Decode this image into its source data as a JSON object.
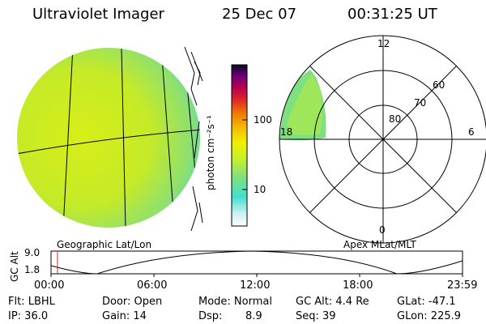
{
  "header": {
    "instrument": "Ultraviolet Imager",
    "date": "25 Dec 07",
    "time": "00:31:25 UT"
  },
  "colorbar": {
    "unit_label": "photon cm⁻²s⁻¹",
    "tick_100": "100",
    "tick_10": "10",
    "colors": [
      "#ffffff",
      "#c8f0f0",
      "#40e0d0",
      "#7ee07e",
      "#c8f028",
      "#f0f000",
      "#f5b400",
      "#f07800",
      "#e02828",
      "#b40050",
      "#6e0078",
      "#0a0a28"
    ]
  },
  "geo_panel": {
    "label": "Geographic Lat/Lon"
  },
  "polar_panel": {
    "label": "Apex MLat/MLT",
    "mlt_labels": {
      "top": "12",
      "left": "18",
      "right": "6",
      "bottom": "0"
    },
    "lat_labels": [
      "60",
      "70",
      "80"
    ]
  },
  "altitude_plot": {
    "ylabel": "GC Alt",
    "ymax": "9.0",
    "ymin": "1.8",
    "xticks": [
      "00:00",
      "06:00",
      "12:00",
      "18:00",
      "23:59"
    ],
    "marker_color": "#cc2222"
  },
  "status": {
    "filter": "Flt: LBHL",
    "ip": "IP: 36.0",
    "door": "Door: Open",
    "gain": "Gain: 14",
    "mode": "Mode: Normal",
    "dsp_label": "Dsp:",
    "dsp_value": "8.9",
    "gc_alt": "GC Alt: 4.4 Re",
    "seq": "Seq: 39",
    "glat": "GLat: -47.1",
    "glon": "GLon: 225.9"
  }
}
